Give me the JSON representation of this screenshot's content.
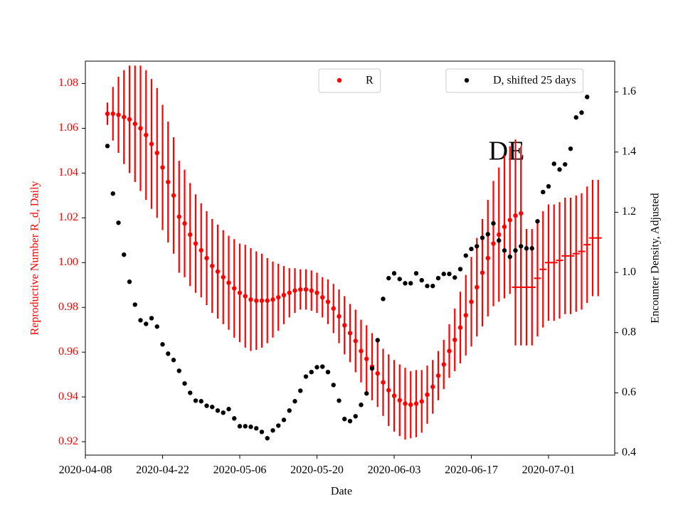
{
  "chart_data": {
    "type": "errorbar",
    "annotation": "DE",
    "xlabel": "Date",
    "ylabel": "Reproductive Number R_d, Daily",
    "y2label": "Encounter Density, Adjusted",
    "xlim": [
      "2020-04-08",
      "2020-07-13"
    ],
    "xticks": [
      "2020-04-08",
      "2020-04-22",
      "2020-05-06",
      "2020-05-20",
      "2020-06-03",
      "2020-06-17",
      "2020-07-01"
    ],
    "ylim": [
      0.914,
      1.09
    ],
    "yticks": [
      0.92,
      0.94,
      0.96,
      0.98,
      {
        "value": 1,
        "label": "1.00"
      },
      1.02,
      1.04,
      1.06,
      1.08
    ],
    "y2lim": [
      0.393,
      1.702
    ],
    "y2ticks": [
      0.4,
      0.6,
      0.8,
      {
        "value": 1,
        "label": "1.0"
      },
      1.2,
      1.4,
      1.6
    ],
    "left_axis_color": "red",
    "series": [
      {
        "name": "R",
        "color": "red",
        "axis": "y",
        "marker": "o",
        "legend_loc": "upper center",
        "x": [
          "2020-04-12",
          "2020-04-13",
          "2020-04-14",
          "2020-04-15",
          "2020-04-16",
          "2020-04-17",
          "2020-04-18",
          "2020-04-19",
          "2020-04-20",
          "2020-04-21",
          "2020-04-22",
          "2020-04-23",
          "2020-04-24",
          "2020-04-25",
          "2020-04-26",
          "2020-04-27",
          "2020-04-28",
          "2020-04-29",
          "2020-04-30",
          "2020-05-01",
          "2020-05-02",
          "2020-05-03",
          "2020-05-04",
          "2020-05-05",
          "2020-05-06",
          "2020-05-07",
          "2020-05-08",
          "2020-05-09",
          "2020-05-10",
          "2020-05-11",
          "2020-05-12",
          "2020-05-13",
          "2020-05-14",
          "2020-05-15",
          "2020-05-16",
          "2020-05-17",
          "2020-05-18",
          "2020-05-19",
          "2020-05-20",
          "2020-05-21",
          "2020-05-22",
          "2020-05-23",
          "2020-05-24",
          "2020-05-25",
          "2020-05-26",
          "2020-05-27",
          "2020-05-28",
          "2020-05-29",
          "2020-05-30",
          "2020-05-31",
          "2020-06-01",
          "2020-06-02",
          "2020-06-03",
          "2020-06-04",
          "2020-06-05",
          "2020-06-06",
          "2020-06-07",
          "2020-06-08",
          "2020-06-09",
          "2020-06-10",
          "2020-06-11",
          "2020-06-12",
          "2020-06-13",
          "2020-06-14",
          "2020-06-15",
          "2020-06-16",
          "2020-06-17",
          "2020-06-18",
          "2020-06-19",
          "2020-06-20",
          "2020-06-21",
          "2020-06-22",
          "2020-06-23",
          "2020-06-24",
          "2020-06-25",
          "2020-06-26"
        ],
        "values": [
          1.0665,
          1.0665,
          1.066,
          1.065,
          1.064,
          1.062,
          1.06,
          1.057,
          1.053,
          1.049,
          1.0425,
          1.036,
          1.03,
          1.0205,
          1.0175,
          1.0125,
          1.0085,
          1.0055,
          1.002,
          0.9985,
          0.996,
          0.9935,
          0.991,
          0.9885,
          0.9865,
          0.985,
          0.9835,
          0.983,
          0.983,
          0.983,
          0.9835,
          0.9845,
          0.9855,
          0.9865,
          0.9875,
          0.988,
          0.988,
          0.9875,
          0.9865,
          0.9845,
          0.9825,
          0.9795,
          0.976,
          0.972,
          0.9685,
          0.965,
          0.9605,
          0.957,
          0.9535,
          0.9505,
          0.9465,
          0.943,
          0.9405,
          0.9385,
          0.937,
          0.9365,
          0.937,
          0.938,
          0.941,
          0.9445,
          0.9495,
          0.9545,
          0.9605,
          0.9655,
          0.971,
          0.9765,
          0.9825,
          0.989,
          0.9955,
          1.002,
          1.0085,
          1.0125,
          1.016,
          1.019,
          1.021,
          1.022
        ],
        "errors": [
          0.005,
          0.012,
          0.017,
          0.021,
          0.024,
          0.026,
          0.028,
          0.029,
          0.029,
          0.029,
          0.028,
          0.027,
          0.026,
          0.025,
          0.024,
          0.023,
          0.022,
          0.021,
          0.021,
          0.021,
          0.021,
          0.021,
          0.021,
          0.022,
          0.022,
          0.023,
          0.023,
          0.022,
          0.021,
          0.019,
          0.017,
          0.015,
          0.013,
          0.011,
          0.01,
          0.009,
          0.009,
          0.009,
          0.009,
          0.009,
          0.01,
          0.011,
          0.012,
          0.013,
          0.013,
          0.014,
          0.014,
          0.015,
          0.015,
          0.015,
          0.015,
          0.016,
          0.016,
          0.016,
          0.016,
          0.015,
          0.015,
          0.014,
          0.013,
          0.012,
          0.011,
          0.011,
          0.012,
          0.014,
          0.016,
          0.018,
          0.02,
          0.022,
          0.024,
          0.026,
          0.028,
          0.03,
          0.032,
          0.033,
          0.034,
          0.03
        ]
      },
      {
        "color": "red",
        "axis": "y",
        "marker": "_",
        "x": [
          "2020-06-25",
          "2020-06-26",
          "2020-06-27",
          "2020-06-28",
          "2020-06-29",
          "2020-06-30",
          "2020-07-01",
          "2020-07-02",
          "2020-07-03",
          "2020-07-04",
          "2020-07-05",
          "2020-07-06",
          "2020-07-07",
          "2020-07-08",
          "2020-07-09",
          "2020-07-10"
        ],
        "values": [
          0.989,
          0.989,
          0.989,
          0.989,
          0.993,
          0.997,
          1.0,
          1.0,
          1.001,
          1.003,
          1.003,
          1.004,
          1.005,
          1.008,
          1.011,
          1.011
        ],
        "errors": [
          0.026,
          0.026,
          0.026,
          0.026,
          0.026,
          0.026,
          0.026,
          0.026,
          0.026,
          0.026,
          0.026,
          0.026,
          0.026,
          0.026,
          0.026,
          0.026
        ]
      },
      {
        "name": "D, shifted 25 days",
        "color": "black",
        "axis": "y2",
        "marker": "o",
        "legend_loc": "upper right",
        "x": [
          "2020-04-12",
          "2020-04-13",
          "2020-04-14",
          "2020-04-15",
          "2020-04-16",
          "2020-04-17",
          "2020-04-18",
          "2020-04-19",
          "2020-04-20",
          "2020-04-21",
          "2020-04-22",
          "2020-04-23",
          "2020-04-24",
          "2020-04-25",
          "2020-04-26",
          "2020-04-27",
          "2020-04-28",
          "2020-04-29",
          "2020-04-30",
          "2020-05-01",
          "2020-05-02",
          "2020-05-03",
          "2020-05-04",
          "2020-05-05",
          "2020-05-06",
          "2020-05-07",
          "2020-05-08",
          "2020-05-09",
          "2020-05-10",
          "2020-05-11",
          "2020-05-12",
          "2020-05-13",
          "2020-05-14",
          "2020-05-15",
          "2020-05-16",
          "2020-05-17",
          "2020-05-18",
          "2020-05-19",
          "2020-05-20",
          "2020-05-21",
          "2020-05-22",
          "2020-05-23",
          "2020-05-24",
          "2020-05-25",
          "2020-05-26",
          "2020-05-27",
          "2020-05-28",
          "2020-05-29",
          "2020-05-30",
          "2020-05-31",
          "2020-06-01",
          "2020-06-02",
          "2020-06-03",
          "2020-06-04",
          "2020-06-05",
          "2020-06-06",
          "2020-06-07",
          "2020-06-08",
          "2020-06-09",
          "2020-06-10",
          "2020-06-11",
          "2020-06-12",
          "2020-06-13",
          "2020-06-14",
          "2020-06-15",
          "2020-06-16",
          "2020-06-17",
          "2020-06-18",
          "2020-06-19",
          "2020-06-20",
          "2020-06-21",
          "2020-06-22",
          "2020-06-23",
          "2020-06-24",
          "2020-06-25",
          "2020-06-26",
          "2020-06-27",
          "2020-06-28",
          "2020-06-29",
          "2020-06-30",
          "2020-07-01",
          "2020-07-02",
          "2020-07-03",
          "2020-07-04",
          "2020-07-05",
          "2020-07-06",
          "2020-07-07",
          "2020-07-08"
        ],
        "values": [
          1.42,
          1.262,
          1.165,
          1.059,
          0.969,
          0.893,
          0.841,
          0.829,
          0.848,
          0.82,
          0.761,
          0.73,
          0.709,
          0.673,
          0.631,
          0.6,
          0.574,
          0.572,
          0.557,
          0.553,
          0.541,
          0.534,
          0.546,
          0.515,
          0.489,
          0.489,
          0.487,
          0.482,
          0.47,
          0.449,
          0.475,
          0.491,
          0.51,
          0.541,
          0.572,
          0.607,
          0.654,
          0.669,
          0.685,
          0.687,
          0.669,
          0.626,
          0.574,
          0.513,
          0.506,
          0.522,
          0.56,
          0.598,
          0.681,
          0.775,
          0.912,
          0.981,
          0.997,
          0.978,
          0.964,
          0.964,
          0.997,
          0.974,
          0.955,
          0.955,
          0.981,
          0.995,
          0.995,
          0.983,
          1.011,
          1.056,
          1.078,
          1.087,
          1.115,
          1.127,
          1.163,
          1.106,
          1.073,
          1.052,
          1.073,
          1.087,
          1.08,
          1.08,
          1.17,
          1.267,
          1.286,
          1.361,
          1.342,
          1.359,
          1.411,
          1.515,
          1.531,
          1.583
        ]
      }
    ]
  }
}
